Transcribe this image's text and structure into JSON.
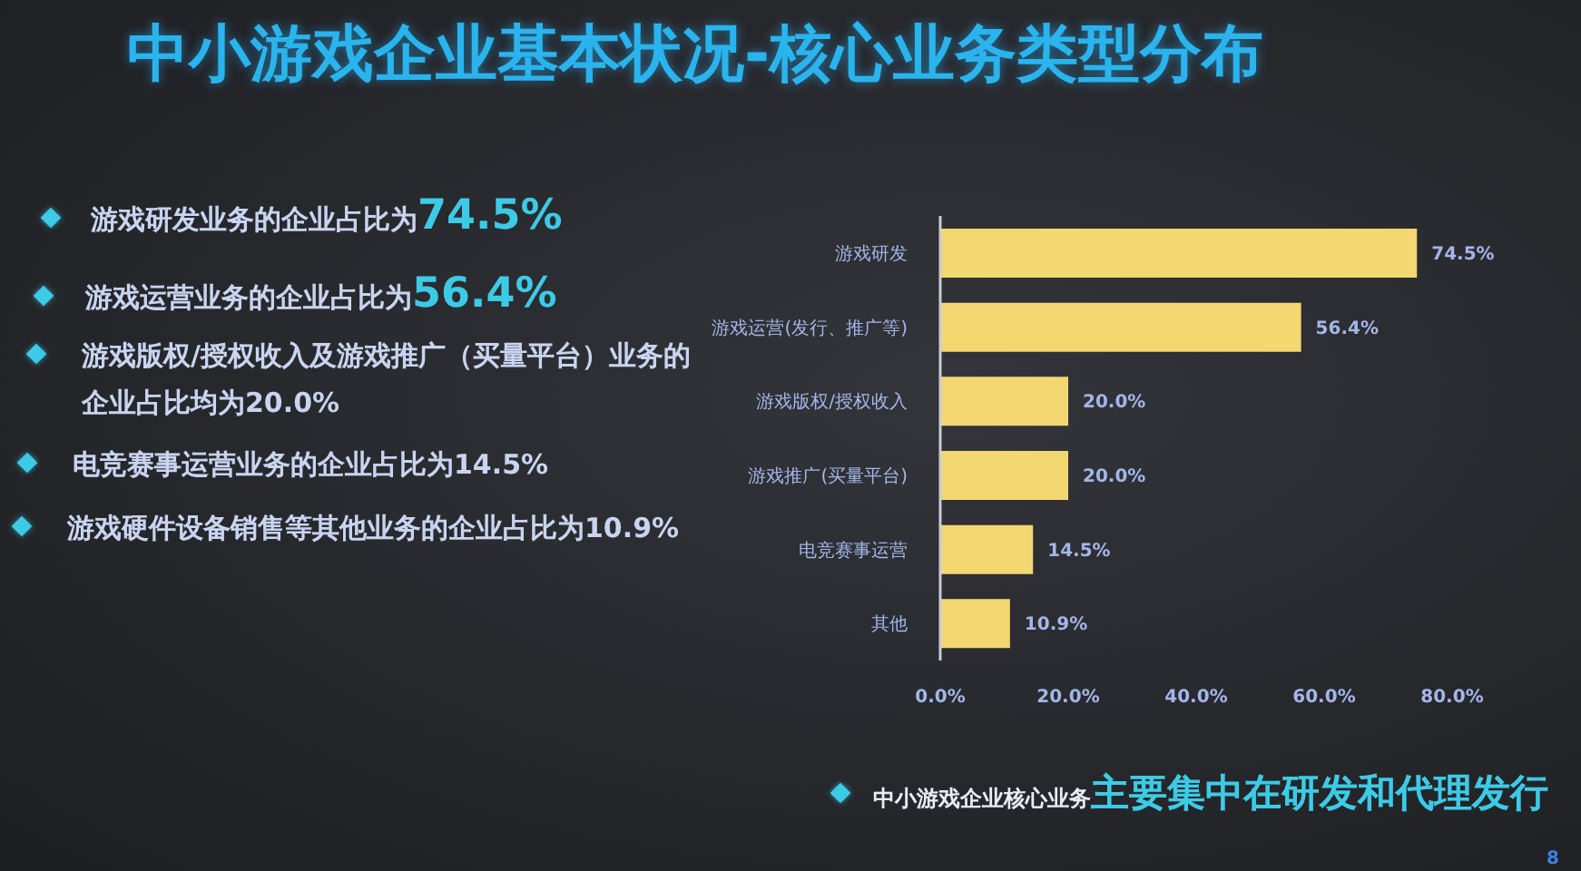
{
  "chart_data": {
    "type": "bar",
    "orientation": "horizontal",
    "title": "中小游戏企业基本状况-核心业务类型分布",
    "categories": [
      "游戏研发",
      "游戏运营(发行、推广等)",
      "游戏版权/授权收入",
      "游戏推广(买量平台)",
      "电竞赛事运营",
      "其他"
    ],
    "values": [
      74.5,
      56.4,
      20.0,
      20.0,
      14.5,
      10.9
    ],
    "color": "#f3d770",
    "value_labels": [
      "74.5%",
      "56.4%",
      "20.0%",
      "20.0%",
      "14.5%",
      "10.9%"
    ],
    "xlim": [
      0,
      80
    ],
    "xticks": [
      {
        "value": 0,
        "label": "0.0%"
      },
      {
        "value": 20,
        "label": "20.0%"
      },
      {
        "value": 40,
        "label": "40.0%"
      },
      {
        "value": 60,
        "label": "60.0%"
      },
      {
        "value": 80,
        "label": "80.0%"
      }
    ],
    "annotations": [
      "游戏研发业务的企业占比为",
      "74.5%",
      "游戏运营业务的企业占比为",
      "56.4%",
      "游戏版权/授权收入及游戏推广（买量平台）业务的企业占比均为20.0%",
      "电竞赛事运营业务的企业占比为14.5%",
      "游戏硬件设备销售等其他业务的企业占比为10.9%",
      "中小游戏企业核心业务",
      "主要集中在研发和代理发行",
      "8"
    ]
  }
}
